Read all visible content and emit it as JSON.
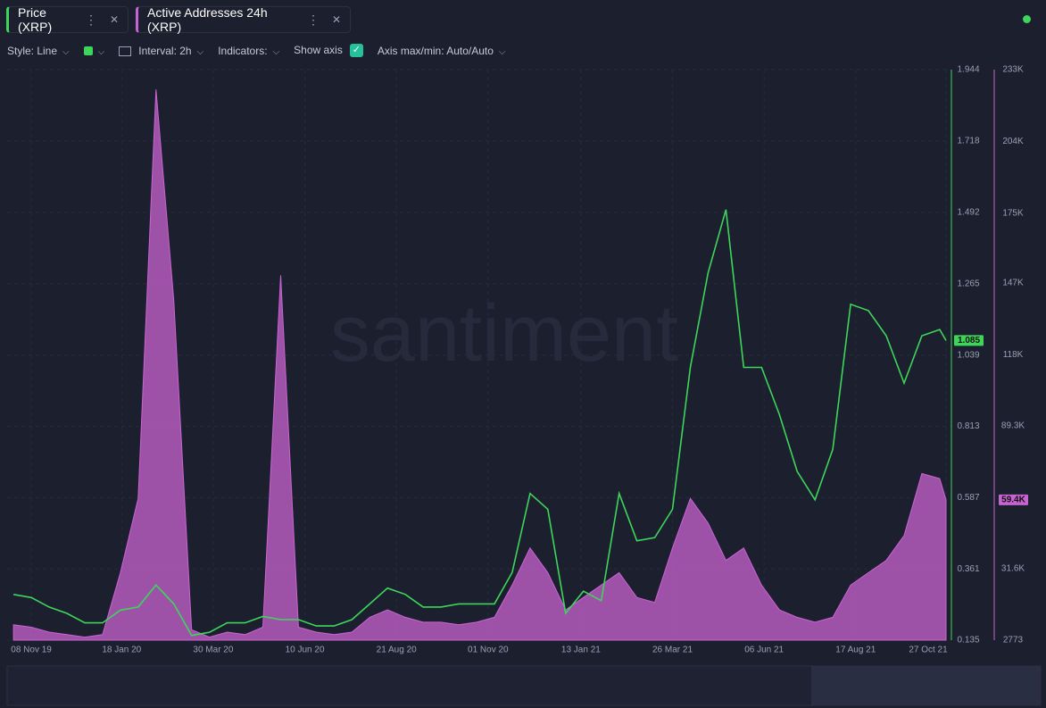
{
  "ui": {
    "toolbar": {
      "style": "Style: Line",
      "interval": "Interval: 2h",
      "indicators": "Indicators:",
      "show_axis": "Show axis",
      "axis_minmax": "Axis max/min: Auto/Auto"
    },
    "watermark": "santiment"
  },
  "chart_data": {
    "type": "line",
    "x": [
      "2019-10-25",
      "2019-11-08",
      "2019-11-22",
      "2019-12-06",
      "2019-12-20",
      "2020-01-03",
      "2020-01-17",
      "2020-01-31",
      "2020-02-14",
      "2020-02-28",
      "2020-03-13",
      "2020-03-27",
      "2020-04-10",
      "2020-04-24",
      "2020-05-08",
      "2020-05-22",
      "2020-06-05",
      "2020-06-19",
      "2020-07-03",
      "2020-07-17",
      "2020-07-31",
      "2020-08-14",
      "2020-08-28",
      "2020-09-11",
      "2020-09-25",
      "2020-10-09",
      "2020-10-23",
      "2020-11-06",
      "2020-11-20",
      "2020-12-04",
      "2020-12-18",
      "2021-01-01",
      "2021-01-15",
      "2021-01-29",
      "2021-02-12",
      "2021-02-26",
      "2021-03-12",
      "2021-03-26",
      "2021-04-09",
      "2021-04-23",
      "2021-05-07",
      "2021-05-21",
      "2021-06-04",
      "2021-06-18",
      "2021-07-02",
      "2021-07-16",
      "2021-07-30",
      "2021-08-13",
      "2021-08-27",
      "2021-09-10",
      "2021-09-24",
      "2021-10-08",
      "2021-10-22",
      "2021-10-27"
    ],
    "xlim": [
      "2019-10-20",
      "2021-10-27"
    ],
    "xticks": [
      {
        "value": "2019-11-08",
        "label": "08 Nov 19"
      },
      {
        "value": "2020-01-18",
        "label": "18 Jan 20"
      },
      {
        "value": "2020-03-30",
        "label": "30 Mar 20"
      },
      {
        "value": "2020-06-10",
        "label": "10 Jun 20"
      },
      {
        "value": "2020-08-21",
        "label": "21 Aug 20"
      },
      {
        "value": "2020-11-01",
        "label": "01 Nov 20"
      },
      {
        "value": "2021-01-13",
        "label": "13 Jan 21"
      },
      {
        "value": "2021-03-26",
        "label": "26 Mar 21"
      },
      {
        "value": "2021-06-06",
        "label": "06 Jun 21"
      },
      {
        "value": "2021-08-17",
        "label": "17 Aug 21"
      },
      {
        "value": "2021-10-27",
        "label": "27 Oct 21"
      }
    ],
    "ylim": [
      0.135,
      1.944
    ],
    "yticks": [
      0.135,
      0.361,
      0.587,
      0.813,
      1.039,
      1.265,
      1.492,
      1.718,
      1.944
    ],
    "y2lim": [
      2773,
      233000
    ],
    "y2ticks": [
      2773,
      {
        "value": 31600,
        "label": "31.6K"
      },
      {
        "value": 89300,
        "label": "89.3K"
      },
      {
        "value": 118000,
        "label": "118K"
      },
      {
        "value": 147000,
        "label": "147K"
      },
      {
        "value": 175000,
        "label": "175K"
      },
      {
        "value": 204000,
        "label": "204K"
      },
      {
        "value": 233000,
        "label": "233K"
      }
    ],
    "series": [
      {
        "name": "Price (XRP)",
        "color": "#3ed65a",
        "values": [
          0.28,
          0.27,
          0.24,
          0.22,
          0.19,
          0.19,
          0.23,
          0.24,
          0.31,
          0.25,
          0.15,
          0.16,
          0.19,
          0.19,
          0.21,
          0.2,
          0.2,
          0.18,
          0.18,
          0.2,
          0.25,
          0.3,
          0.28,
          0.24,
          0.24,
          0.25,
          0.25,
          0.25,
          0.35,
          0.6,
          0.55,
          0.22,
          0.29,
          0.26,
          0.6,
          0.45,
          0.46,
          0.55,
          1.0,
          1.3,
          1.5,
          1.0,
          1.0,
          0.85,
          0.67,
          0.58,
          0.74,
          1.2,
          1.18,
          1.1,
          0.95,
          1.1,
          1.12,
          1.085
        ]
      },
      {
        "name": "Active Addresses 24h (XRP)",
        "color": "#c864d2",
        "axis": "y2",
        "values": [
          9000,
          8000,
          6000,
          5000,
          4000,
          5000,
          30000,
          60000,
          225000,
          140000,
          7000,
          4000,
          6000,
          5000,
          8000,
          150000,
          8000,
          6000,
          5000,
          6000,
          12000,
          15000,
          12000,
          10000,
          10000,
          9000,
          10000,
          12000,
          25000,
          40000,
          30000,
          15000,
          20000,
          25000,
          30000,
          20000,
          18000,
          40000,
          60000,
          50000,
          35000,
          40000,
          25000,
          15000,
          12000,
          10000,
          12000,
          25000,
          30000,
          35000,
          45000,
          70000,
          68000,
          59400
        ],
        "value_labels": {
          "53": "59.4K"
        }
      }
    ]
  }
}
